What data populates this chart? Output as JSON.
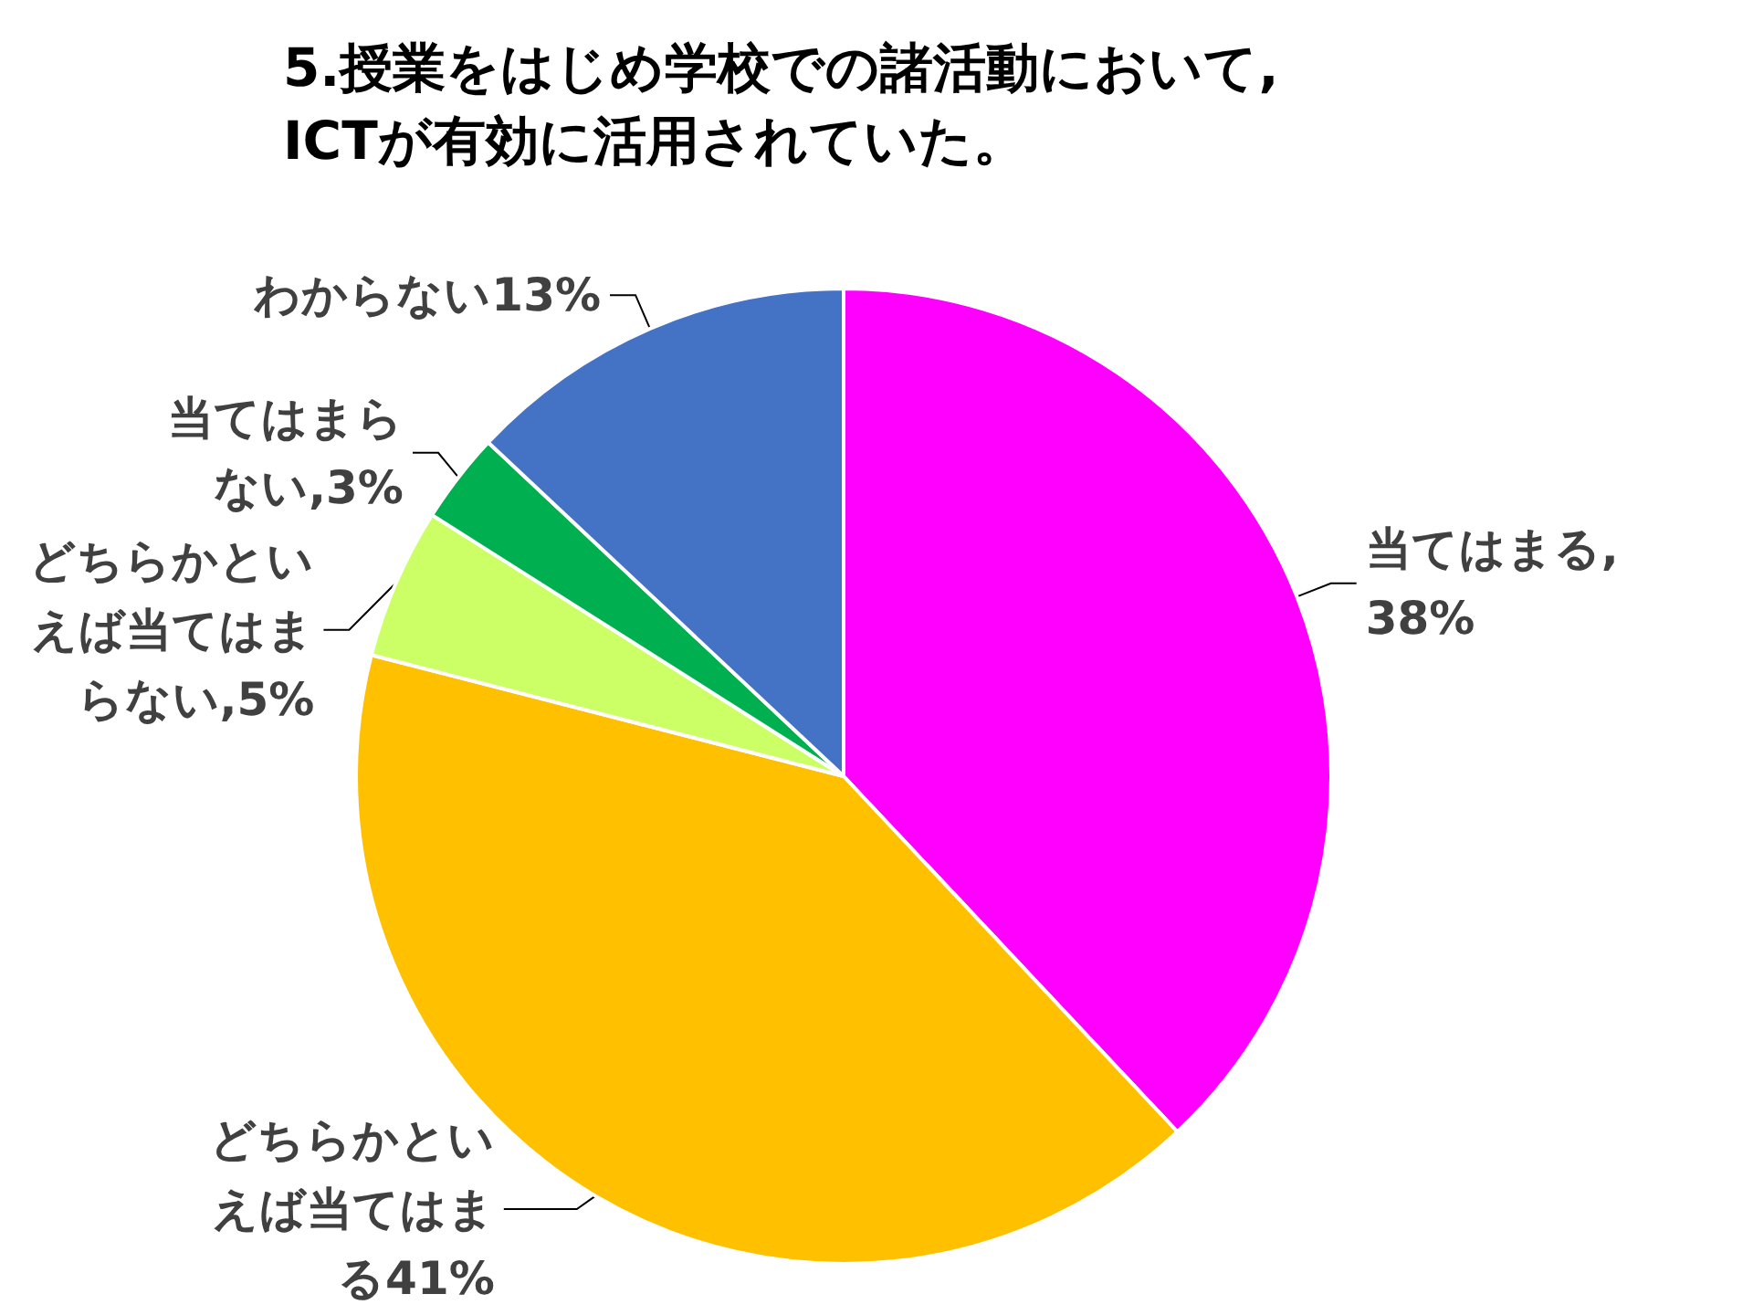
{
  "chart_data": {
    "type": "pie",
    "title": "5.授業をはじめ学校での諸活動において,ICTが有効に活用されていた。",
    "categories": [
      "当てはまる",
      "どちらかといえば当てはまる",
      "どちらかといえば当てはまらない",
      "当てはまらない",
      "わからない"
    ],
    "values": [
      38,
      41,
      5,
      3,
      13
    ],
    "value_labels": [
      ",38%",
      "41%",
      ",5%",
      ",3%",
      "13%"
    ],
    "colors": [
      "#ff00ff",
      "#ffc000",
      "#ccff66",
      "#00b050",
      "#4472c4"
    ]
  }
}
